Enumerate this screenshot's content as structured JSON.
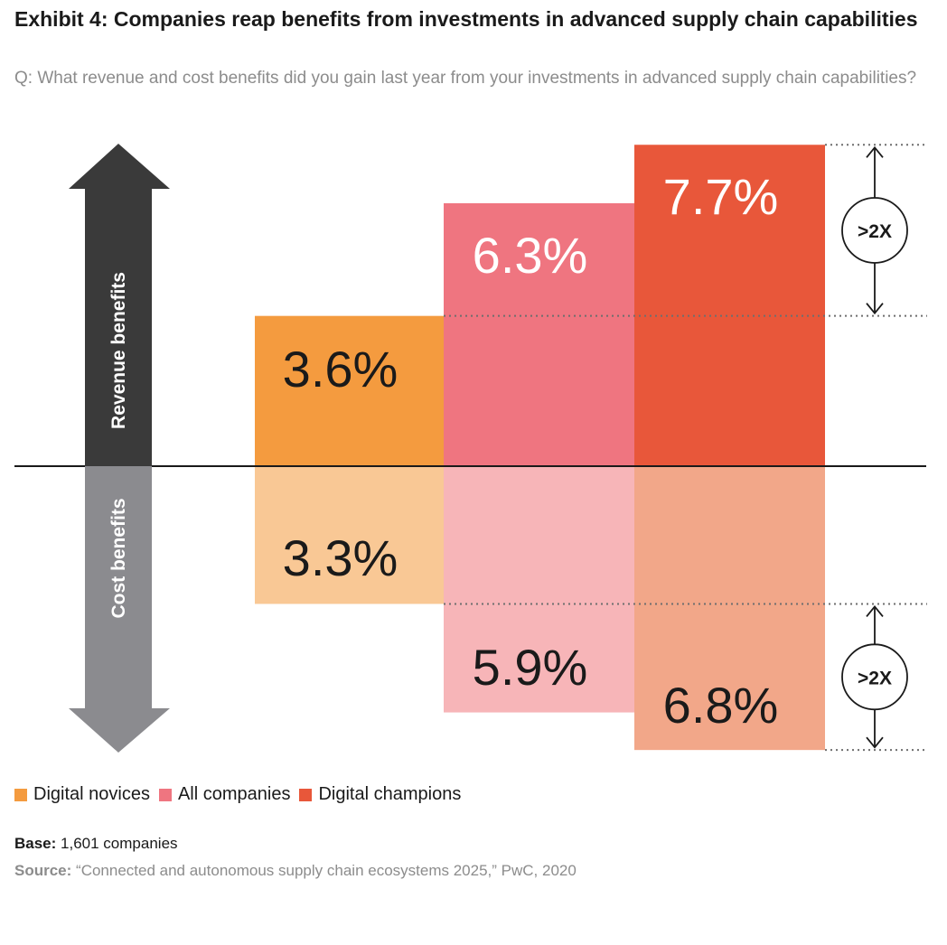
{
  "header": {
    "title": "Exhibit 4: Companies reap benefits from investments in advanced supply chain capabilities",
    "question": "Q: What revenue and cost benefits did you gain last year from your investments in advanced supply chain capabilities?"
  },
  "chart_data": {
    "type": "bar",
    "title": "Exhibit 4: Companies reap benefits from investments in advanced supply chain capabilities",
    "categories": [
      "Digital novices",
      "All companies",
      "Digital champions"
    ],
    "series": [
      {
        "name": "Revenue benefits",
        "values": [
          3.6,
          6.3,
          7.7
        ],
        "labels": [
          "3.6%",
          "6.3%",
          "7.7%"
        ]
      },
      {
        "name": "Cost benefits",
        "values": [
          3.3,
          5.9,
          6.8
        ],
        "labels": [
          "3.3%",
          "5.9%",
          "6.8%"
        ]
      }
    ],
    "axis_labels": {
      "up": "Revenue benefits",
      "down": "Cost benefits"
    },
    "annotations": [
      {
        "text": ">2X",
        "series": "Revenue benefits",
        "from": 3.6,
        "to": 7.7
      },
      {
        "text": ">2X",
        "series": "Cost benefits",
        "from": 3.3,
        "to": 6.8
      }
    ],
    "ylim": [
      -7.0,
      7.7
    ],
    "colors": {
      "revenue": [
        "#f49b3f",
        "#ef7580",
        "#e8573a"
      ],
      "cost": [
        "#f9c895",
        "#f7b5b8",
        "#f2a789"
      ]
    }
  },
  "legend": {
    "items": [
      {
        "label": "Digital novices",
        "color": "#f49b3f"
      },
      {
        "label": "All companies",
        "color": "#ef7580"
      },
      {
        "label": "Digital champions",
        "color": "#e8573a"
      }
    ]
  },
  "footer": {
    "base_label": "Base:",
    "base_text": "1,601 companies",
    "source_label": "Source:",
    "source_text": "“Connected and autonomous supply chain ecosystems 2025,” PwC, 2020"
  }
}
